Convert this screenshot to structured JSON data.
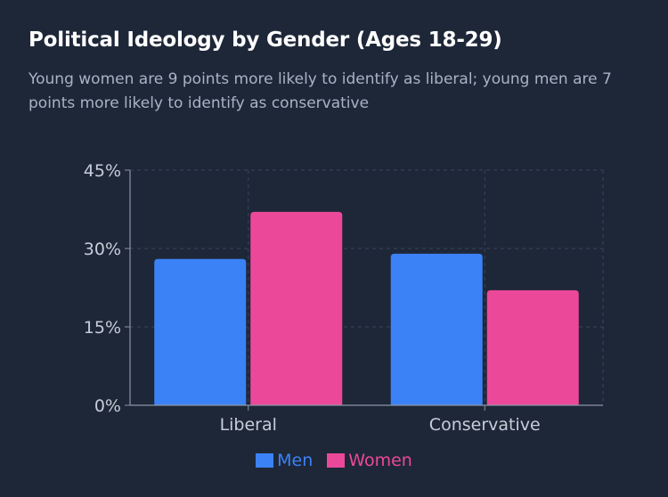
{
  "title": "Political Ideology by Gender (Ages 18-29)",
  "subtitle": "Young women are 9 points more likely to identify as liberal; young men are 7 points more likely to identify as conservative",
  "chart_data": {
    "type": "bar",
    "title": "Political Ideology by Gender (Ages 18-29)",
    "subtitle": "Young women are 9 points more likely to identify as liberal; young men are 7 points more likely to identify as conservative",
    "categories": [
      "Liberal",
      "Conservative"
    ],
    "series": [
      {
        "name": "Men",
        "values": [
          28,
          29
        ],
        "color": "#3b82f6"
      },
      {
        "name": "Women",
        "values": [
          37,
          22
        ],
        "color": "#ec4899"
      }
    ],
    "yticks": [
      0,
      15,
      30,
      45
    ],
    "ytick_labels": [
      "0%",
      "15%",
      "30%",
      "45%"
    ],
    "ylim": [
      0,
      45
    ],
    "grid": true,
    "legend_position": "bottom-center",
    "colors": {
      "background": "#1e2738",
      "grid": "#3a4458",
      "axis": "#8b95a8",
      "tick_text": "#c7cdd8"
    }
  }
}
